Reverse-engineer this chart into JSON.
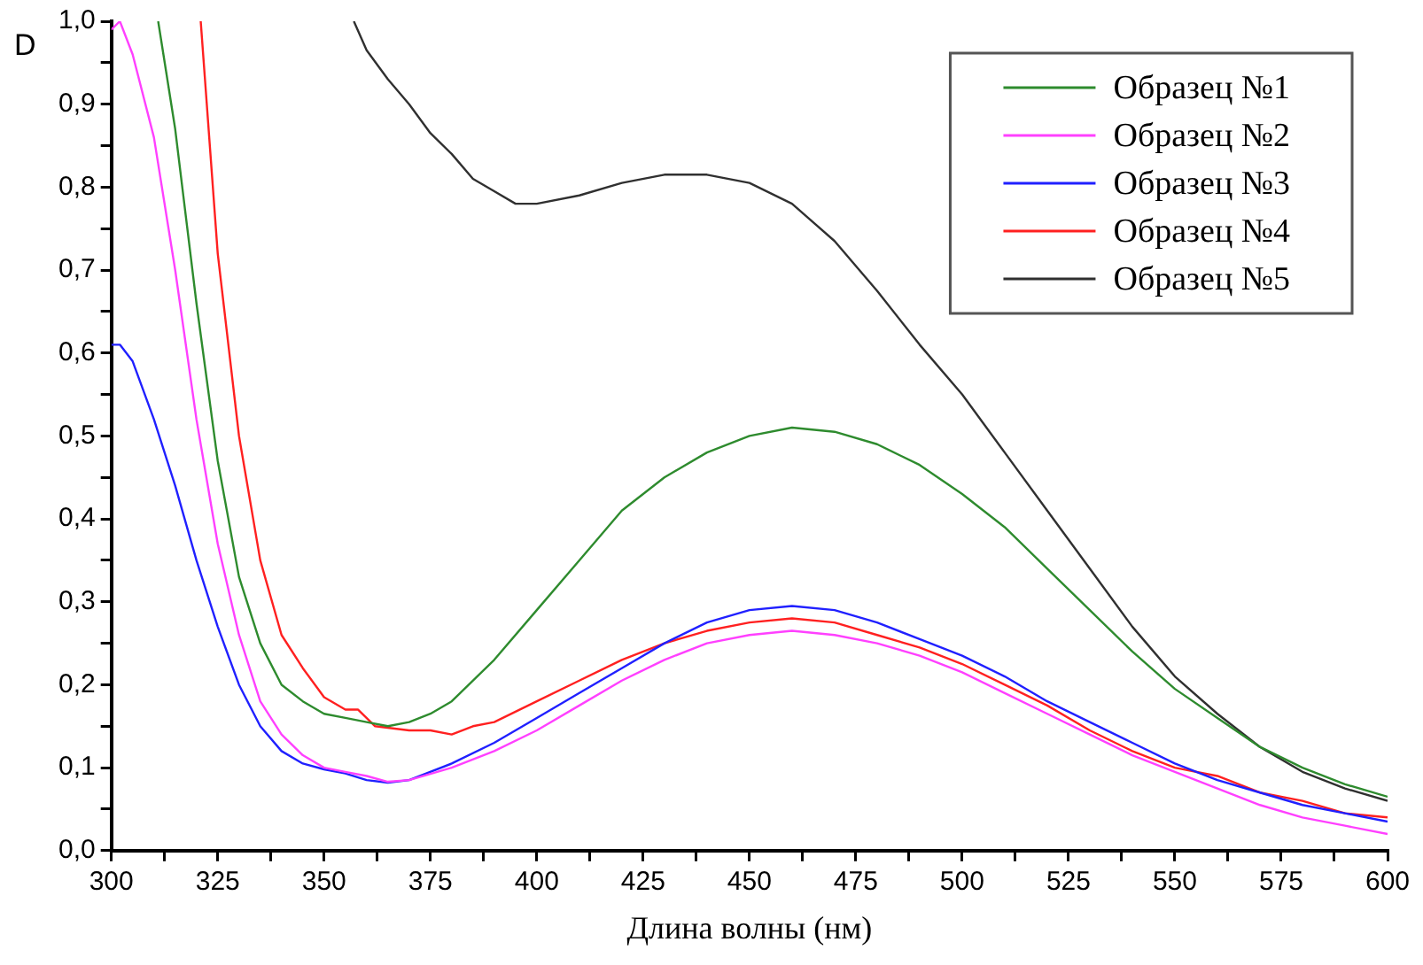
{
  "chart_data": {
    "type": "line",
    "xlabel": "Длина волны (нм)",
    "ylabel": "D",
    "legend": "top right",
    "grid": false,
    "marker": "none",
    "line_style": "solid",
    "xlim": [
      300,
      600
    ],
    "xticks": [
      300,
      {
        "value": 312.5,
        "label": null
      },
      325,
      {
        "value": 337.5,
        "label": null
      },
      350,
      {
        "value": 362.5,
        "label": null
      },
      375,
      {
        "value": 387.5,
        "label": null
      },
      400,
      {
        "value": 412.5,
        "label": null
      },
      425,
      {
        "value": 437.5,
        "label": null
      },
      450,
      {
        "value": 462.5,
        "label": null
      },
      475,
      {
        "value": 487.5,
        "label": null
      },
      500,
      {
        "value": 512.5,
        "label": null
      },
      525,
      {
        "value": 537.5,
        "label": null
      },
      550,
      {
        "value": 562.5,
        "label": null
      },
      575,
      {
        "value": 587.5,
        "label": null
      },
      600
    ],
    "ylim": [
      0,
      1
    ],
    "yticks": [
      {
        "value": 0,
        "label": "0,0"
      },
      {
        "value": 0.05,
        "label": null
      },
      {
        "value": 0.1,
        "label": "0,1"
      },
      {
        "value": 0.15,
        "label": null
      },
      {
        "value": 0.2,
        "label": "0,2"
      },
      {
        "value": 0.25,
        "label": null
      },
      {
        "value": 0.3,
        "label": "0,3"
      },
      {
        "value": 0.35,
        "label": null
      },
      {
        "value": 0.4,
        "label": "0,4"
      },
      {
        "value": 0.45,
        "label": null
      },
      {
        "value": 0.5,
        "label": "0,5"
      },
      {
        "value": 0.55,
        "label": null
      },
      {
        "value": 0.6,
        "label": "0,6"
      },
      {
        "value": 0.65,
        "label": null
      },
      {
        "value": 0.7,
        "label": "0,7"
      },
      {
        "value": 0.75,
        "label": null
      },
      {
        "value": 0.8,
        "label": "0,8"
      },
      {
        "value": 0.85,
        "label": null
      },
      {
        "value": 0.9,
        "label": "0,9"
      },
      {
        "value": 0.95,
        "label": null
      },
      {
        "value": 1,
        "label": "1,0"
      }
    ],
    "series": [
      {
        "name": "Образец №1",
        "color": "#2e8b2e",
        "x": [
          311,
          315,
          320,
          325,
          330,
          335,
          340,
          345,
          350,
          355,
          360,
          365,
          370,
          375,
          380,
          390,
          400,
          410,
          420,
          430,
          440,
          450,
          460,
          470,
          480,
          490,
          500,
          510,
          520,
          530,
          540,
          550,
          560,
          570,
          580,
          590,
          600
        ],
        "values": [
          1.0,
          0.87,
          0.66,
          0.47,
          0.33,
          0.25,
          0.2,
          0.18,
          0.165,
          0.16,
          0.155,
          0.15,
          0.155,
          0.165,
          0.18,
          0.23,
          0.29,
          0.35,
          0.41,
          0.45,
          0.48,
          0.5,
          0.51,
          0.505,
          0.49,
          0.465,
          0.43,
          0.39,
          0.34,
          0.29,
          0.24,
          0.195,
          0.16,
          0.125,
          0.1,
          0.08,
          0.065
        ]
      },
      {
        "name": "Образец №2",
        "color": "#ff40ff",
        "x": [
          300,
          302,
          305,
          310,
          315,
          320,
          325,
          330,
          335,
          340,
          345,
          350,
          355,
          360,
          365,
          370,
          380,
          390,
          400,
          410,
          420,
          430,
          440,
          450,
          460,
          470,
          480,
          490,
          500,
          510,
          520,
          530,
          540,
          550,
          560,
          570,
          580,
          590,
          600
        ],
        "values": [
          0.99,
          1.0,
          0.96,
          0.86,
          0.7,
          0.52,
          0.37,
          0.26,
          0.18,
          0.14,
          0.115,
          0.1,
          0.095,
          0.09,
          0.083,
          0.085,
          0.1,
          0.12,
          0.145,
          0.175,
          0.205,
          0.23,
          0.25,
          0.26,
          0.265,
          0.26,
          0.25,
          0.235,
          0.215,
          0.19,
          0.165,
          0.14,
          0.115,
          0.095,
          0.075,
          0.055,
          0.04,
          0.03,
          0.02
        ]
      },
      {
        "name": "Образец №3",
        "color": "#2020ff",
        "x": [
          300,
          302,
          305,
          310,
          315,
          320,
          325,
          330,
          335,
          340,
          345,
          350,
          355,
          360,
          365,
          370,
          380,
          390,
          400,
          410,
          420,
          430,
          440,
          450,
          460,
          470,
          480,
          490,
          500,
          510,
          520,
          530,
          540,
          550,
          560,
          570,
          580,
          590,
          600
        ],
        "values": [
          0.61,
          0.61,
          0.59,
          0.52,
          0.44,
          0.35,
          0.27,
          0.2,
          0.15,
          0.12,
          0.105,
          0.098,
          0.093,
          0.085,
          0.082,
          0.085,
          0.105,
          0.13,
          0.16,
          0.19,
          0.22,
          0.25,
          0.275,
          0.29,
          0.295,
          0.29,
          0.275,
          0.255,
          0.235,
          0.21,
          0.18,
          0.155,
          0.13,
          0.105,
          0.085,
          0.07,
          0.055,
          0.045,
          0.035
        ]
      },
      {
        "name": "Образец №4",
        "color": "#ff2020",
        "x": [
          321,
          325,
          330,
          335,
          340,
          345,
          350,
          355,
          358,
          362,
          370,
          375,
          380,
          385,
          390,
          400,
          410,
          420,
          430,
          440,
          450,
          460,
          470,
          480,
          490,
          500,
          510,
          520,
          530,
          540,
          550,
          560,
          570,
          580,
          590,
          600
        ],
        "values": [
          1.0,
          0.72,
          0.5,
          0.35,
          0.26,
          0.22,
          0.185,
          0.17,
          0.17,
          0.15,
          0.145,
          0.145,
          0.14,
          0.15,
          0.155,
          0.18,
          0.205,
          0.23,
          0.25,
          0.265,
          0.275,
          0.28,
          0.275,
          0.26,
          0.245,
          0.225,
          0.2,
          0.175,
          0.145,
          0.12,
          0.1,
          0.09,
          0.07,
          0.06,
          0.045,
          0.04
        ]
      },
      {
        "name": "Образец №5",
        "color": "#303030",
        "x": [
          357,
          360,
          365,
          370,
          375,
          380,
          385,
          390,
          395,
          400,
          410,
          420,
          430,
          440,
          450,
          460,
          470,
          480,
          490,
          500,
          510,
          520,
          530,
          540,
          550,
          560,
          570,
          580,
          590,
          600
        ],
        "values": [
          1.0,
          0.965,
          0.93,
          0.9,
          0.865,
          0.84,
          0.81,
          0.795,
          0.78,
          0.78,
          0.79,
          0.805,
          0.815,
          0.815,
          0.805,
          0.78,
          0.735,
          0.675,
          0.61,
          0.55,
          0.48,
          0.41,
          0.34,
          0.27,
          0.21,
          0.165,
          0.125,
          0.095,
          0.075,
          0.06
        ]
      }
    ]
  }
}
